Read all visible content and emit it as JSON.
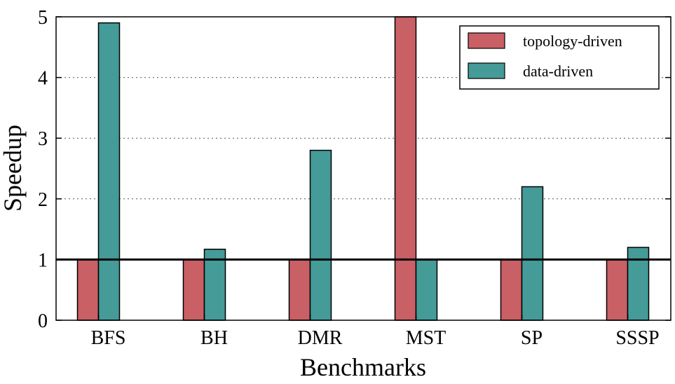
{
  "chart_data": {
    "type": "bar",
    "title": "",
    "xlabel": "Benchmarks",
    "ylabel": "Speedup",
    "categories": [
      "BFS",
      "BH",
      "DMR",
      "MST",
      "SP",
      "SSSP"
    ],
    "series": [
      {
        "name": "topology-driven",
        "color": "#c86066",
        "values": [
          1,
          1,
          1,
          5,
          1,
          1
        ]
      },
      {
        "name": "data-driven",
        "color": "#449b98",
        "values": [
          4.9,
          1.17,
          2.8,
          1,
          2.2,
          1.2
        ]
      }
    ],
    "ylim": [
      0,
      5
    ],
    "yticks": [
      "0",
      "1",
      "2",
      "3",
      "4",
      "5"
    ],
    "reference_line": 1,
    "grid": "horizontal-dotted",
    "legend": "top-right"
  }
}
